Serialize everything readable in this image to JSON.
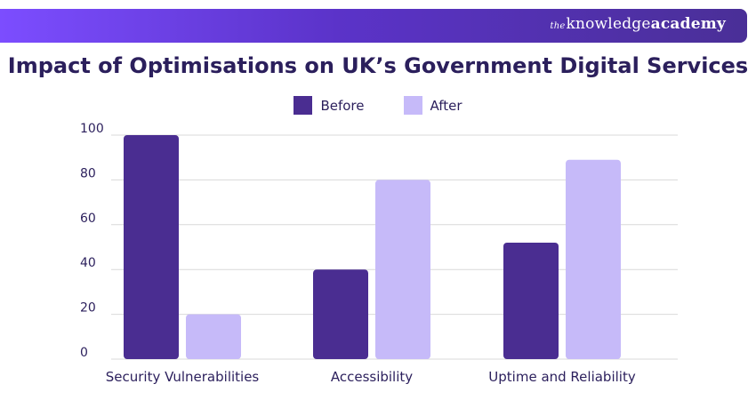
{
  "brand": {
    "the": "the",
    "knowledge": "knowledge",
    "academy": "academy"
  },
  "colors": {
    "before": "#4a2d91",
    "after": "#c6baf9",
    "grid": "#d9d9d9",
    "text": "#2b1f5c"
  },
  "chart_data": {
    "type": "bar",
    "title": "Impact of Optimisations on UK’s Government Digital Services",
    "xlabel": "",
    "ylabel": "",
    "categories": [
      "Security Vulnerabilities",
      "Accessibility",
      "Uptime and Reliability"
    ],
    "series": [
      {
        "name": "Before",
        "values": [
          100,
          40,
          52
        ]
      },
      {
        "name": "After",
        "values": [
          20,
          80,
          89
        ]
      }
    ],
    "ylim": [
      0,
      100
    ],
    "yticks": [
      0,
      20,
      40,
      60,
      80,
      100
    ],
    "grid": true,
    "legend_position": "top-center"
  }
}
